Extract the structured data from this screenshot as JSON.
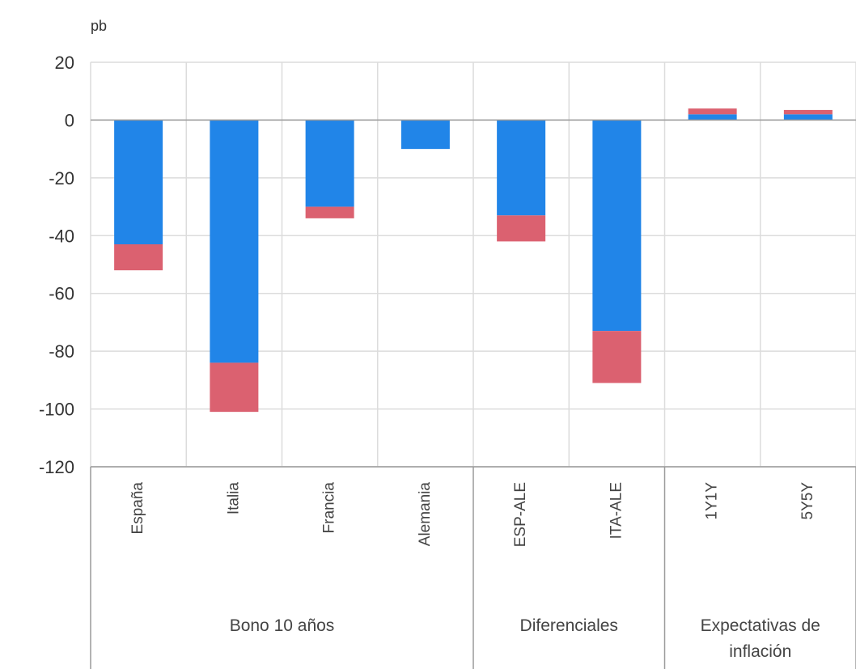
{
  "chart_data": {
    "type": "bar",
    "stacked": true,
    "ylabel": "pb",
    "ylim": [
      -120,
      20
    ],
    "yticks": [
      20,
      0,
      -20,
      -40,
      -60,
      -80,
      -100,
      -120
    ],
    "grid": true,
    "categories": [
      "España",
      "Italia",
      "Francia",
      "Alemania",
      "ESP-ALE",
      "ITA-ALE",
      "1Y1Y",
      "5Y5Y"
    ],
    "groups": [
      {
        "label": "Bono 10 años",
        "categories": [
          "España",
          "Italia",
          "Francia",
          "Alemania"
        ]
      },
      {
        "label": "Diferenciales",
        "categories": [
          "ESP-ALE",
          "ITA-ALE"
        ]
      },
      {
        "label": "Expectativas de inflación",
        "categories": [
          "1Y1Y",
          "5Y5Y"
        ]
      }
    ],
    "series": [
      {
        "color": "#2185e8",
        "values": [
          -43,
          -84,
          -30,
          -10,
          -33,
          -73,
          2,
          2
        ]
      },
      {
        "color": "#db6170",
        "values": [
          -9,
          -17,
          -4,
          0,
          -9,
          -18,
          2,
          1.5
        ]
      }
    ]
  }
}
